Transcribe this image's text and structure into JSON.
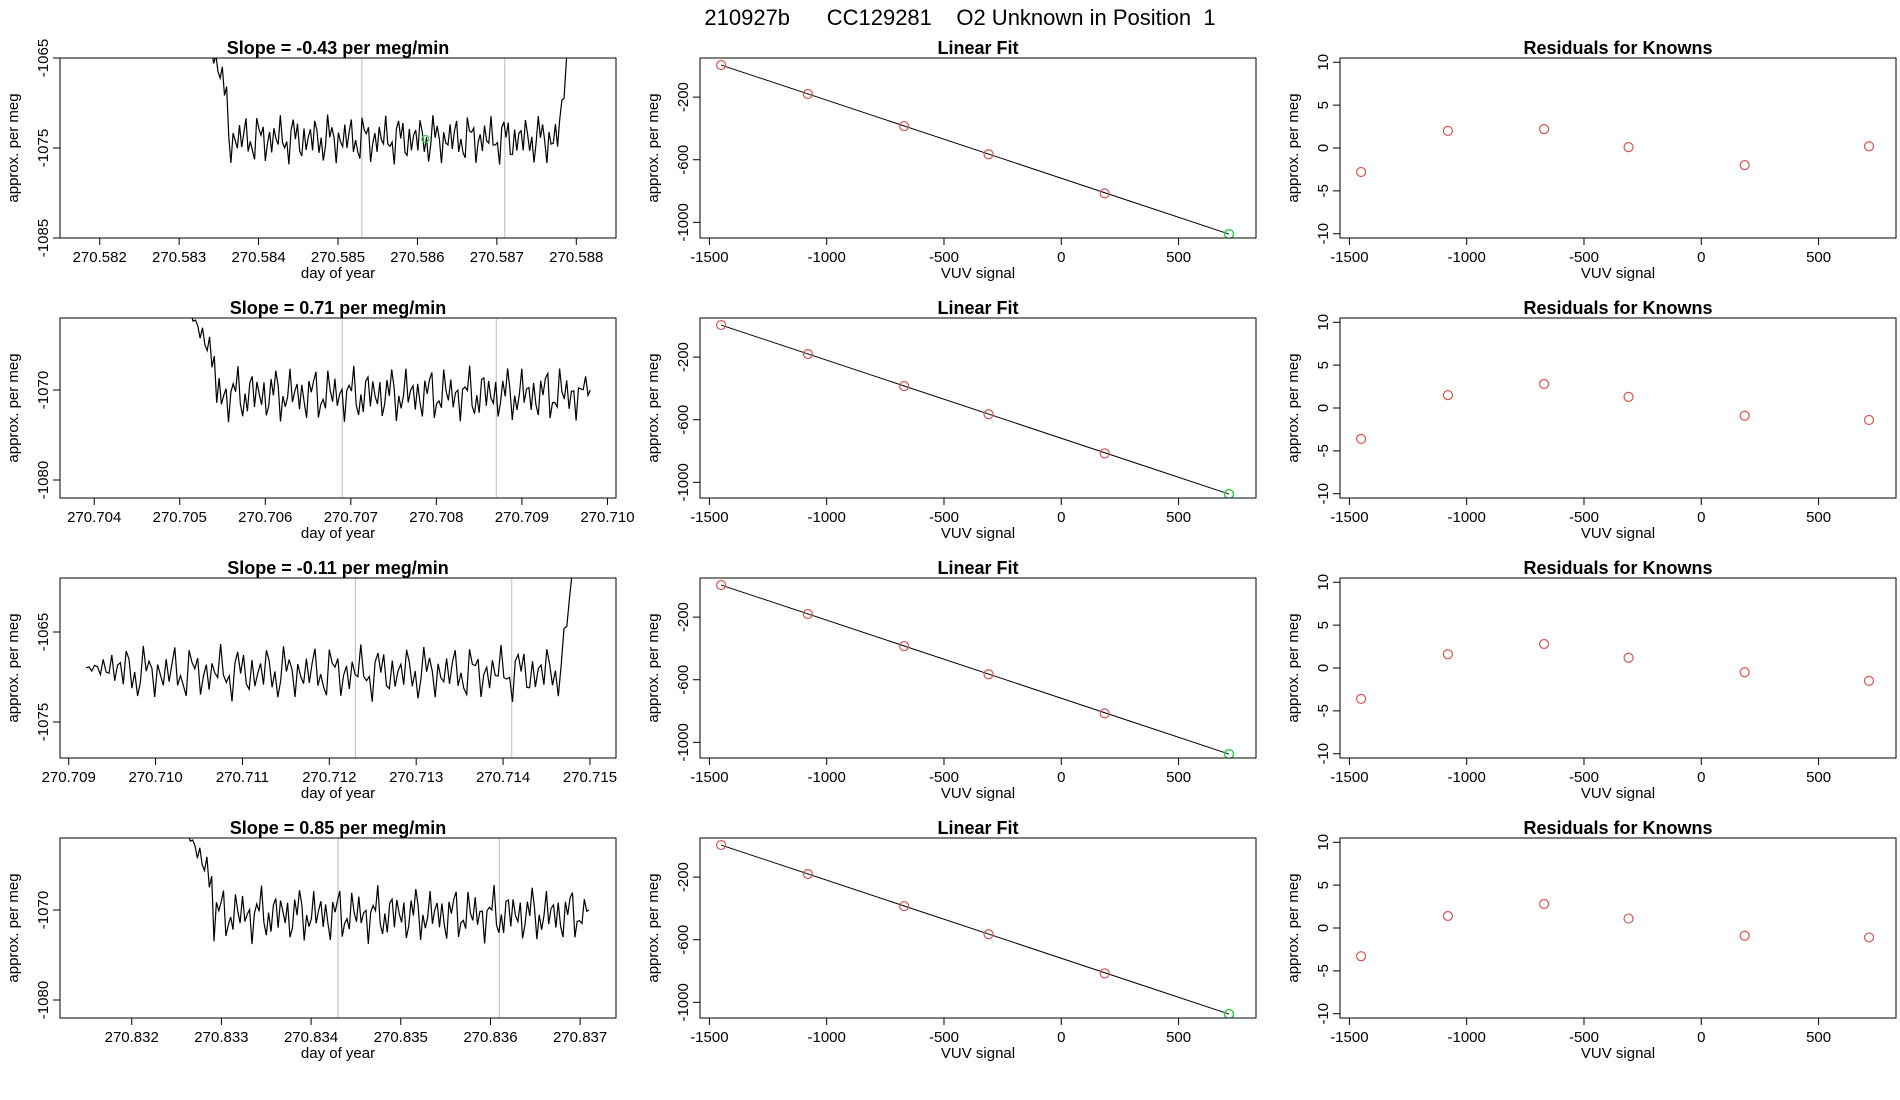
{
  "figure": {
    "title": "210927b      CC129281    O2 Unknown in Position  1"
  },
  "colors": {
    "trace": "#000000",
    "known_points": "#d9534f",
    "unknown_point": "#2ecc40",
    "vlines": "#bbbbbb",
    "fit_line": "#000000"
  },
  "chart_data": [
    {
      "type": "line",
      "title": "Slope =  -0.43  per meg/min",
      "xlabel": "day of year",
      "ylabel": "approx. per meg",
      "xlim": [
        270.5815,
        270.5885
      ],
      "ylim": [
        -1085,
        -1065
      ],
      "xticks": [
        "270.582",
        "270.583",
        "270.584",
        "270.585",
        "270.586",
        "270.587",
        "270.588"
      ],
      "yticks": [
        "-1085",
        "-1075",
        "-1065"
      ],
      "vlines": [
        270.5853,
        270.5871
      ],
      "trace": {
        "x_start": 270.5833,
        "x_end": 270.5879,
        "entry": -1062,
        "start_level": -1069,
        "level": -1074,
        "amp": 1.8,
        "exit": -1062
      },
      "marker": {
        "x": 270.5861,
        "y": -1074
      }
    },
    {
      "type": "scatter",
      "title": "Linear Fit",
      "xlabel": "VUV signal",
      "ylabel": "approx. per meg",
      "xlim": [
        -1540,
        830
      ],
      "ylim": [
        -1100,
        50
      ],
      "xticks": [
        "-1500",
        "-1000",
        "-500",
        "0",
        "500"
      ],
      "yticks": [
        "-1000",
        "-600",
        "-200"
      ],
      "known_x": [
        -1450,
        -1080,
        -670,
        -310,
        185
      ],
      "known_y": [
        5,
        -180,
        -385,
        -565,
        -815
      ],
      "unknown": {
        "x": 715,
        "y": -1075
      },
      "fit": {
        "x": [
          -1450,
          715
        ],
        "y": [
          5,
          -1075
        ]
      }
    },
    {
      "type": "scatter",
      "title": "Residuals for Knowns",
      "xlabel": "VUV signal",
      "ylabel": "approx. per meg",
      "xlim": [
        -1540,
        830
      ],
      "ylim": [
        -10.5,
        10.5
      ],
      "xticks": [
        "-1500",
        "-1000",
        "-500",
        "0",
        "500"
      ],
      "yticks": [
        "-10",
        "-5",
        "0",
        "5",
        "10"
      ],
      "x": [
        -1450,
        -1080,
        -670,
        -310,
        185,
        715
      ],
      "y": [
        -2.8,
        2.0,
        2.2,
        0.1,
        -2.0,
        0.2
      ]
    },
    {
      "type": "line",
      "title": "Slope =  0.71  per meg/min",
      "xlabel": "day of year",
      "ylabel": "approx. per meg",
      "xlim": [
        270.7036,
        270.7101
      ],
      "ylim": [
        -1082,
        -1062
      ],
      "xticks": [
        "270.704",
        "270.705",
        "270.706",
        "270.707",
        "270.708",
        "270.709",
        "270.710"
      ],
      "yticks": [
        "-1080",
        "-1070"
      ],
      "vlines": [
        270.7069,
        270.7087
      ],
      "trace": {
        "x_start": 270.7051,
        "x_end": 270.7098,
        "entry": -1061,
        "start_level": -1067,
        "level": -1070.5,
        "amp": 2.0,
        "exit": -1070
      }
    },
    {
      "type": "scatter",
      "title": "Linear Fit",
      "xlabel": "VUV signal",
      "ylabel": "approx. per meg",
      "xlim": [
        -1540,
        830
      ],
      "ylim": [
        -1100,
        50
      ],
      "xticks": [
        "-1500",
        "-1000",
        "-500",
        "0",
        "500"
      ],
      "yticks": [
        "-1000",
        "-600",
        "-200"
      ],
      "known_x": [
        -1450,
        -1080,
        -670,
        -310,
        185
      ],
      "known_y": [
        5,
        -180,
        -385,
        -565,
        -815
      ],
      "unknown": {
        "x": 715,
        "y": -1075
      },
      "fit": {
        "x": [
          -1450,
          715
        ],
        "y": [
          5,
          -1075
        ]
      }
    },
    {
      "type": "scatter",
      "title": "Residuals for Knowns",
      "xlabel": "VUV signal",
      "ylabel": "approx. per meg",
      "xlim": [
        -1540,
        830
      ],
      "ylim": [
        -10.5,
        10.5
      ],
      "xticks": [
        "-1500",
        "-1000",
        "-500",
        "0",
        "500"
      ],
      "yticks": [
        "-10",
        "-5",
        "0",
        "5",
        "10"
      ],
      "x": [
        -1450,
        -1080,
        -670,
        -310,
        185,
        715
      ],
      "y": [
        -3.6,
        1.5,
        2.8,
        1.3,
        -0.9,
        -1.4
      ]
    },
    {
      "type": "line",
      "title": "Slope =  -0.11  per meg/min",
      "xlabel": "day of year",
      "ylabel": "approx. per meg",
      "xlim": [
        270.7089,
        270.7153
      ],
      "ylim": [
        -1079,
        -1059
      ],
      "xticks": [
        "270.709",
        "270.710",
        "270.711",
        "270.712",
        "270.713",
        "270.714",
        "270.715"
      ],
      "yticks": [
        "-1075",
        "-1065"
      ],
      "vlines": [
        270.7123,
        270.7141
      ],
      "trace": {
        "x_start": 270.7092,
        "x_end": 270.7148,
        "entry": -1069,
        "start_level": -1069,
        "level": -1069.5,
        "amp": 2.0,
        "exit": -1058
      }
    },
    {
      "type": "scatter",
      "title": "Linear Fit",
      "xlabel": "VUV signal",
      "ylabel": "approx. per meg",
      "xlim": [
        -1540,
        830
      ],
      "ylim": [
        -1100,
        50
      ],
      "xticks": [
        "-1500",
        "-1000",
        "-500",
        "0",
        "500"
      ],
      "yticks": [
        "-1000",
        "-600",
        "-200"
      ],
      "known_x": [
        -1450,
        -1080,
        -670,
        -310,
        185
      ],
      "known_y": [
        5,
        -180,
        -385,
        -565,
        -815
      ],
      "unknown": {
        "x": 715,
        "y": -1075
      },
      "fit": {
        "x": [
          -1450,
          715
        ],
        "y": [
          5,
          -1075
        ]
      }
    },
    {
      "type": "scatter",
      "title": "Residuals for Knowns",
      "xlabel": "VUV signal",
      "ylabel": "approx. per meg",
      "xlim": [
        -1540,
        830
      ],
      "ylim": [
        -10.5,
        10.5
      ],
      "xticks": [
        "-1500",
        "-1000",
        "-500",
        "0",
        "500"
      ],
      "yticks": [
        "-10",
        "-5",
        "0",
        "5",
        "10"
      ],
      "x": [
        -1450,
        -1080,
        -670,
        -310,
        185,
        715
      ],
      "y": [
        -3.6,
        1.6,
        2.8,
        1.2,
        -0.5,
        -1.5
      ]
    },
    {
      "type": "line",
      "title": "Slope =  0.85  per meg/min",
      "xlabel": "day of year",
      "ylabel": "approx. per meg",
      "xlim": [
        270.8312,
        270.8374
      ],
      "ylim": [
        -1082,
        -1062
      ],
      "xticks": [
        "270.832",
        "270.833",
        "270.834",
        "270.835",
        "270.836",
        "270.837"
      ],
      "yticks": [
        "-1080",
        "-1070"
      ],
      "vlines": [
        270.8343,
        270.8361
      ],
      "trace": {
        "x_start": 270.8326,
        "x_end": 270.8371,
        "entry": -1061,
        "start_level": -1067,
        "level": -1070.5,
        "amp": 2.0,
        "exit": -1070
      }
    },
    {
      "type": "scatter",
      "title": "Linear Fit",
      "xlabel": "VUV signal",
      "ylabel": "approx. per meg",
      "xlim": [
        -1540,
        830
      ],
      "ylim": [
        -1100,
        50
      ],
      "xticks": [
        "-1500",
        "-1000",
        "-500",
        "0",
        "500"
      ],
      "yticks": [
        "-1000",
        "-600",
        "-200"
      ],
      "known_x": [
        -1450,
        -1080,
        -670,
        -310,
        185
      ],
      "known_y": [
        5,
        -180,
        -385,
        -565,
        -815
      ],
      "unknown": {
        "x": 715,
        "y": -1075
      },
      "fit": {
        "x": [
          -1450,
          715
        ],
        "y": [
          5,
          -1075
        ]
      }
    },
    {
      "type": "scatter",
      "title": "Residuals for Knowns",
      "xlabel": "VUV signal",
      "ylabel": "approx. per meg",
      "xlim": [
        -1540,
        830
      ],
      "ylim": [
        -10.5,
        10.5
      ],
      "xticks": [
        "-1500",
        "-1000",
        "-500",
        "0",
        "500"
      ],
      "yticks": [
        "-10",
        "-5",
        "0",
        "5",
        "10"
      ],
      "x": [
        -1450,
        -1080,
        -670,
        -310,
        185,
        715
      ],
      "y": [
        -3.3,
        1.4,
        2.8,
        1.1,
        -0.9,
        -1.1
      ]
    }
  ]
}
